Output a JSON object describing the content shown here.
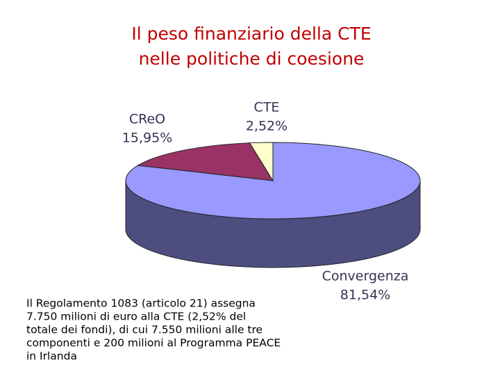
{
  "chart_data": {
    "type": "pie3d",
    "title": [
      "Il peso finanziario della CTE",
      "nelle politiche di coesione"
    ],
    "categories": [
      "Convergenza",
      "CReO",
      "CTE"
    ],
    "values": [
      81.54,
      15.95,
      2.52
    ],
    "value_labels": [
      "81,54%",
      "15,95%",
      "2,52%"
    ],
    "colors": [
      "#9999ff",
      "#993366",
      "#ffffcc"
    ],
    "note": [
      "Il Regolamento 1083 (articolo 21) assegna",
      "7.750 milioni di euro alla CTE (2,52% del",
      "totale dei fondi), di cui 7.550 milioni alle tre",
      "componenti e 200 milioni al Programma PEACE",
      "in Irlanda"
    ]
  }
}
